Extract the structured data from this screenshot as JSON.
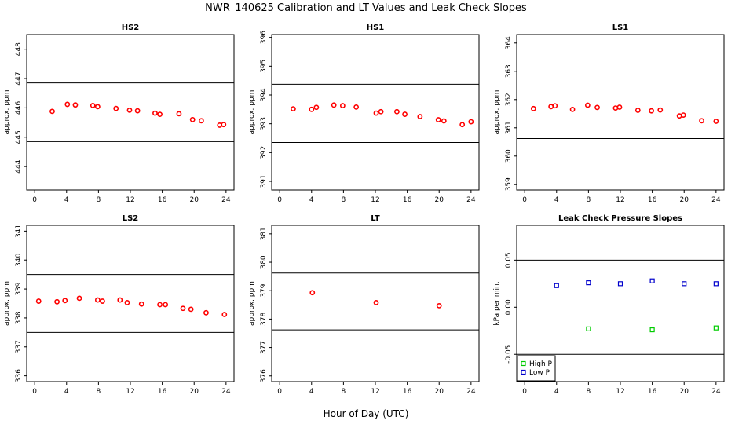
{
  "figure": {
    "title": "NWR_140625  Calibration and LT Values and Leak Check Slopes",
    "xlabel": "Hour of Day (UTC)"
  },
  "chart_data": [
    {
      "type": "scatter",
      "title": "HS2",
      "ylabel": "approx. ppm",
      "xlim": [
        -1,
        25
      ],
      "ylim": [
        443.2,
        448.5
      ],
      "xticks": [
        0,
        4,
        8,
        12,
        16,
        20,
        24
      ],
      "yticks": [
        444,
        445,
        446,
        447,
        448
      ],
      "hlines": [
        446.85,
        444.85
      ],
      "series": [
        {
          "color": "#ff0000",
          "marker": "circle",
          "x": [
            2.2,
            4.1,
            5.1,
            7.3,
            7.9,
            10.2,
            11.9,
            12.9,
            15.1,
            15.7,
            18.1,
            19.8,
            20.9,
            23.2,
            23.7
          ],
          "y": [
            445.88,
            446.12,
            446.1,
            446.08,
            446.04,
            445.98,
            445.92,
            445.9,
            445.82,
            445.78,
            445.8,
            445.6,
            445.56,
            445.41,
            445.43
          ]
        }
      ]
    },
    {
      "type": "scatter",
      "title": "HS1",
      "ylabel": "approx. ppm",
      "xlim": [
        -1,
        25
      ],
      "ylim": [
        390.7,
        396.1
      ],
      "xticks": [
        0,
        4,
        8,
        12,
        16,
        20,
        24
      ],
      "yticks": [
        391,
        392,
        393,
        394,
        395,
        396
      ],
      "hlines": [
        394.37,
        392.35
      ],
      "series": [
        {
          "color": "#ff0000",
          "marker": "circle",
          "x": [
            1.7,
            4.0,
            4.6,
            6.8,
            7.9,
            9.6,
            12.1,
            12.7,
            14.7,
            15.7,
            17.6,
            19.9,
            20.6,
            22.9,
            24.0
          ],
          "y": [
            393.52,
            393.5,
            393.57,
            393.65,
            393.63,
            393.58,
            393.37,
            393.42,
            393.42,
            393.33,
            393.25,
            393.14,
            393.1,
            392.97,
            393.07
          ]
        }
      ]
    },
    {
      "type": "scatter",
      "title": "LS1",
      "ylabel": "approx. ppm",
      "xlim": [
        -1,
        25
      ],
      "ylim": [
        358.8,
        364.3
      ],
      "xticks": [
        0,
        4,
        8,
        12,
        16,
        20,
        24
      ],
      "yticks": [
        359,
        360,
        361,
        362,
        363,
        364
      ],
      "hlines": [
        362.62,
        360.62
      ],
      "series": [
        {
          "color": "#ff0000",
          "marker": "circle",
          "x": [
            1.1,
            3.3,
            3.8,
            6.0,
            7.9,
            9.1,
            11.4,
            11.9,
            14.2,
            15.9,
            17.0,
            19.4,
            19.9,
            22.2,
            24.0
          ],
          "y": [
            361.68,
            361.75,
            361.78,
            361.65,
            361.8,
            361.72,
            361.7,
            361.73,
            361.62,
            361.6,
            361.63,
            361.42,
            361.45,
            361.25,
            361.23
          ]
        }
      ]
    },
    {
      "type": "scatter",
      "title": "LS2",
      "ylabel": "approx. ppm",
      "xlim": [
        -1,
        25
      ],
      "ylim": [
        335.8,
        341.2
      ],
      "xticks": [
        0,
        4,
        8,
        12,
        16,
        20,
        24
      ],
      "yticks": [
        336,
        337,
        338,
        339,
        340,
        341
      ],
      "hlines": [
        339.5,
        337.5
      ],
      "series": [
        {
          "color": "#ff0000",
          "marker": "circle",
          "x": [
            0.5,
            2.8,
            3.8,
            5.6,
            7.9,
            8.5,
            10.7,
            11.6,
            13.4,
            15.7,
            16.4,
            18.6,
            19.6,
            21.5,
            23.8
          ],
          "y": [
            338.58,
            338.56,
            338.6,
            338.68,
            338.62,
            338.58,
            338.62,
            338.53,
            338.48,
            338.46,
            338.46,
            338.33,
            338.3,
            338.18,
            338.12
          ]
        }
      ]
    },
    {
      "type": "scatter",
      "title": "LT",
      "ylabel": "approx. ppm",
      "xlim": [
        -1,
        25
      ],
      "ylim": [
        375.8,
        381.3
      ],
      "xticks": [
        0,
        4,
        8,
        12,
        16,
        20,
        24
      ],
      "yticks": [
        376,
        377,
        378,
        379,
        380,
        381
      ],
      "hlines": [
        379.62,
        377.62
      ],
      "series": [
        {
          "color": "#ff0000",
          "marker": "circle",
          "x": [
            4.1,
            12.1,
            20.0
          ],
          "y": [
            378.93,
            378.58,
            378.47
          ]
        }
      ]
    },
    {
      "type": "scatter",
      "title": "Leak Check Pressure Slopes",
      "ylabel": "kPa per min.",
      "xlim": [
        -1,
        25
      ],
      "ylim": [
        -0.079,
        0.087
      ],
      "xticks": [
        0,
        4,
        8,
        12,
        16,
        20,
        24
      ],
      "yticks": [
        -0.05,
        0.0,
        0.05
      ],
      "ytick_labels": [
        "-0.05",
        "0.00",
        "0.05"
      ],
      "hlines": [
        0.05,
        -0.05
      ],
      "legend": "bottom-left",
      "series": [
        {
          "name": "High P",
          "color": "#00cc00",
          "marker": "square",
          "x": [
            8,
            16,
            24
          ],
          "y": [
            -0.023,
            -0.024,
            -0.022
          ]
        },
        {
          "name": "Low P",
          "color": "#0000cc",
          "marker": "square",
          "x": [
            4,
            8,
            12,
            16,
            20,
            24
          ],
          "y": [
            0.023,
            0.026,
            0.025,
            0.028,
            0.025,
            0.025
          ]
        }
      ]
    }
  ]
}
